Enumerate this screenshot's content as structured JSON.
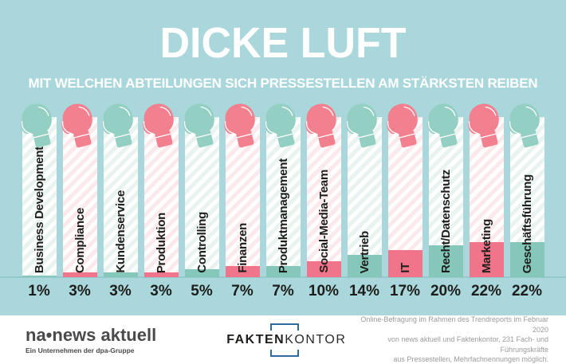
{
  "header": {
    "title": "DICKE LUFT",
    "subtitle": "MIT WELCHEN ABTEILUNGEN SICH PRESSESTELLEN AM STÄRKSTEN REIBEN"
  },
  "chart_data": {
    "type": "bar",
    "title": "DICKE LUFT",
    "subtitle": "MIT WELCHEN ABTEILUNGEN SICH PRESSESTELLEN AM STÄRKSTEN REIBEN",
    "unit": "%",
    "orientation": "vertical",
    "grid": false,
    "ylim": [
      0,
      100
    ],
    "value_label_position": "below-bar",
    "categories": [
      "Business Development",
      "Compliance",
      "Kundenservice",
      "Produktion",
      "Controlling",
      "Finanzen",
      "Produktmanagement",
      "Social-Media-Team",
      "Vertrieb",
      "IT",
      "Recht/Datenschutz",
      "Marketing",
      "Geschäftsführung"
    ],
    "values": [
      1,
      3,
      3,
      3,
      5,
      7,
      7,
      10,
      14,
      17,
      20,
      22,
      22
    ],
    "bars": [
      {
        "label": "Business Development",
        "value": 1,
        "value_label": "1%",
        "color": "teal"
      },
      {
        "label": "Compliance",
        "value": 3,
        "value_label": "3%",
        "color": "pink"
      },
      {
        "label": "Kundenservice",
        "value": 3,
        "value_label": "3%",
        "color": "teal"
      },
      {
        "label": "Produktion",
        "value": 3,
        "value_label": "3%",
        "color": "pink"
      },
      {
        "label": "Controlling",
        "value": 5,
        "value_label": "5%",
        "color": "teal"
      },
      {
        "label": "Finanzen",
        "value": 7,
        "value_label": "7%",
        "color": "pink"
      },
      {
        "label": "Produktmanagement",
        "value": 7,
        "value_label": "7%",
        "color": "teal"
      },
      {
        "label": "Social-Media-Team",
        "value": 10,
        "value_label": "10%",
        "color": "pink"
      },
      {
        "label": "Vertrieb",
        "value": 14,
        "value_label": "14%",
        "color": "teal"
      },
      {
        "label": "IT",
        "value": 17,
        "value_label": "17%",
        "color": "pink"
      },
      {
        "label": "Recht/Datenschutz",
        "value": 20,
        "value_label": "20%",
        "color": "teal"
      },
      {
        "label": "Marketing",
        "value": 22,
        "value_label": "22%",
        "color": "pink"
      },
      {
        "label": "Geschäftsführung",
        "value": 22,
        "value_label": "22%",
        "color": "teal"
      }
    ]
  },
  "footer": {
    "na_logo": {
      "text": "na•news aktuell",
      "tagline": "Ein Unternehmen der dpa-Gruppe"
    },
    "fakten_logo": {
      "bold_part": "FAKTEN",
      "light_part": "KONTOR"
    },
    "source_line1": "Online-Befragung im Rahmen des Trendreports im Februar 2020",
    "source_line2": "von news aktuell und Faktenkontor, 231 Fach- und Führungskräfte",
    "source_line3": "aus Pressestellen, Mehrfachnennungen möglich."
  },
  "colors": {
    "background": "#a9d7db",
    "pink": "#f0758a",
    "teal": "#85c7b9",
    "pink_glove": "#f2808f",
    "teal_glove": "#93cfc3",
    "stripe_pink": "#fce9ec",
    "stripe_teal": "#e9f4f1",
    "baseline": "#96c9ce",
    "text_black": "#1d1d1b",
    "logo_gray": "#4a4a4c",
    "footer_gray": "#9b9b9b",
    "bracket_blue": "#2d6ca3"
  }
}
